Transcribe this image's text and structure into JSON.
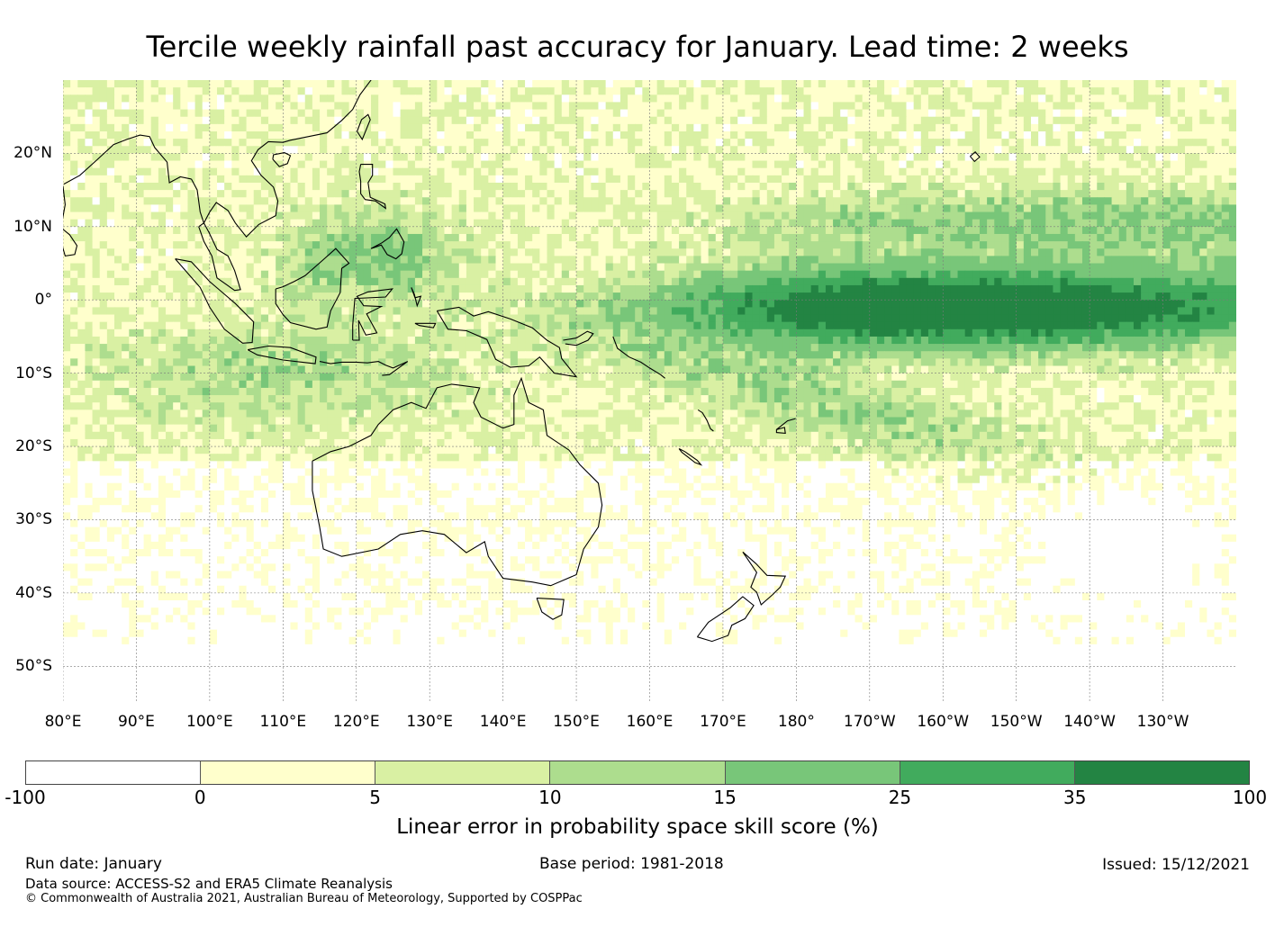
{
  "title": "Tercile weekly rainfall past accuracy for January. Lead time: 2 weeks",
  "map": {
    "lon_range": [
      80,
      240
    ],
    "lat_range": [
      -55,
      30
    ],
    "lat_labels": [
      "20°N",
      "10°N",
      "0°",
      "10°S",
      "20°S",
      "30°S",
      "40°S",
      "50°S"
    ],
    "lat_values": [
      20,
      10,
      0,
      -10,
      -20,
      -30,
      -40,
      -50
    ],
    "lon_labels": [
      "80°E",
      "90°E",
      "100°E",
      "110°E",
      "120°E",
      "130°E",
      "140°E",
      "150°E",
      "160°E",
      "170°E",
      "180°",
      "170°W",
      "160°W",
      "150°W",
      "140°W",
      "130°W"
    ],
    "lon_values": [
      80,
      90,
      100,
      110,
      120,
      130,
      140,
      150,
      160,
      170,
      180,
      190,
      200,
      210,
      220,
      230
    ],
    "gridlines": true,
    "coastline_color": "#000000"
  },
  "colorbar": {
    "label": "Linear error in probability space skill score (%)",
    "ticks": [
      "-100",
      "0",
      "5",
      "10",
      "15",
      "25",
      "35",
      "100"
    ],
    "bins": [
      {
        "from": -100,
        "to": 0,
        "color": "#ffffff"
      },
      {
        "from": 0,
        "to": 5,
        "color": "#ffffcc"
      },
      {
        "from": 5,
        "to": 10,
        "color": "#d9f0a3"
      },
      {
        "from": 10,
        "to": 15,
        "color": "#addd8e"
      },
      {
        "from": 15,
        "to": 25,
        "color": "#78c679"
      },
      {
        "from": 25,
        "to": 35,
        "color": "#41ab5d"
      },
      {
        "from": 35,
        "to": 100,
        "color": "#238443"
      }
    ]
  },
  "footer": {
    "run_date": "Run date: January",
    "base_period": "Base period: 1981-2018",
    "issued": "Issued: 15/12/2021",
    "data_source": "Data source: ACCESS-S2 and ERA5 Climate Reanalysis",
    "copyright": "© Commonwealth of Australia 2021, Australian Bureau of Meteorology, Supported by COSPPac"
  }
}
